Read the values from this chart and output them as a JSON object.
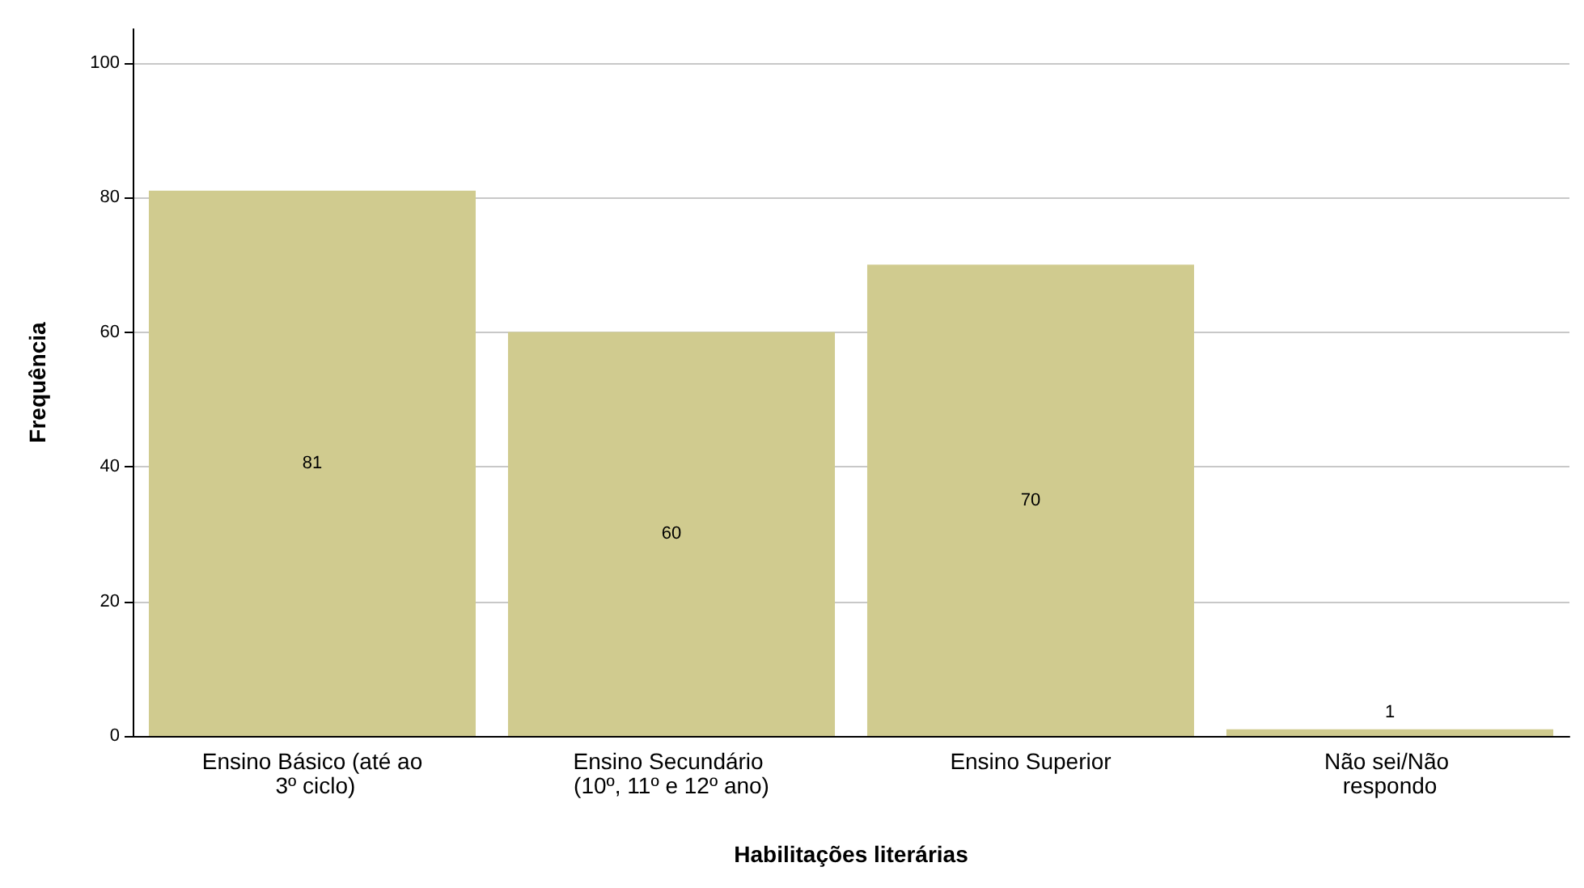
{
  "chart_data": {
    "type": "bar",
    "xlabel": "Habilitações literárias",
    "ylabel": "Frequência",
    "categories": [
      "Ensino Básico (até ao 3º ciclo)",
      "Ensino Secundário (10º, 11º e 12º ano)",
      "Ensino Superior",
      "Não sei/Não respondo"
    ],
    "values": [
      81,
      60,
      70,
      1
    ],
    "color": "#d0cb8f",
    "ylim": [
      0,
      105
    ],
    "yticks": [
      0,
      20,
      40,
      60,
      80,
      100
    ],
    "grid": "y",
    "data_labels": true
  }
}
